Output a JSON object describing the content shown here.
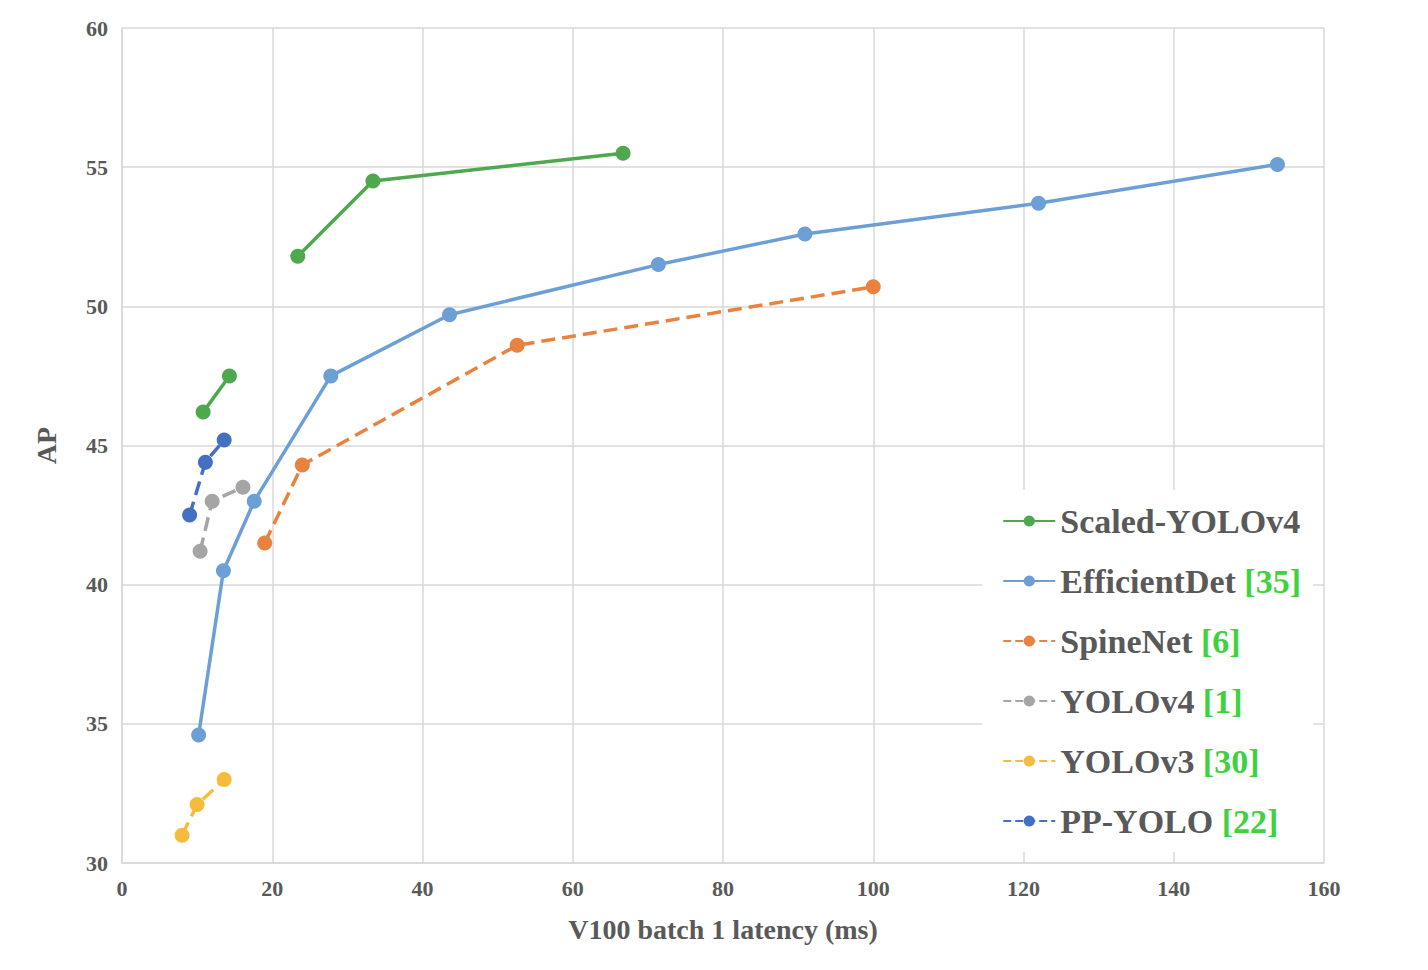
{
  "chart_data": {
    "type": "line",
    "x_label": "V100 batch 1 latency (ms)",
    "y_label": "AP",
    "xlim": [
      0,
      160
    ],
    "xticks": [
      0,
      20,
      40,
      60,
      80,
      100,
      120,
      140,
      160
    ],
    "ylim": [
      30,
      60
    ],
    "yticks": [
      30,
      35,
      40,
      45,
      50,
      55,
      60
    ],
    "grid": true,
    "legend": "lower right",
    "series": [
      {
        "name": "Scaled-YOLOv4",
        "color": "#4ea84e",
        "marker": "circle",
        "line_style": "solid",
        "x": [
          10.8,
          14.3,
          null,
          23.4,
          33.4,
          66.7
        ],
        "values": [
          46.2,
          47.5,
          null,
          51.8,
          54.5,
          55.5
        ]
      },
      {
        "name": "EfficientDet [35]",
        "color": "#6c9fd6",
        "marker": "circle",
        "line_style": "solid",
        "x": [
          10.2,
          13.5,
          17.6,
          27.8,
          43.6,
          71.4,
          90.9,
          122,
          153.8
        ],
        "values": [
          34.6,
          40.5,
          43.0,
          47.5,
          49.7,
          51.5,
          52.6,
          53.7,
          55.1
        ]
      },
      {
        "name": "SpineNet [6]",
        "color": "#e8823e",
        "marker": "circle",
        "line_style": "dashed",
        "x": [
          19,
          24,
          52.6,
          100
        ],
        "values": [
          41.5,
          44.3,
          48.6,
          50.7
        ]
      },
      {
        "name": "YOLOv4 [1]",
        "color": "#a5a5a5",
        "marker": "circle",
        "line_style": "dashed",
        "x": [
          10.4,
          12,
          16.1
        ],
        "values": [
          41.2,
          43.0,
          43.5
        ]
      },
      {
        "name": "YOLOv3 [30]",
        "color": "#f5bb3c",
        "marker": "circle",
        "line_style": "dashed",
        "x": [
          8,
          10,
          13.6
        ],
        "values": [
          31.0,
          32.1,
          33.0
        ]
      },
      {
        "name": "PP-YOLO [22]",
        "color": "#4470c2",
        "marker": "circle",
        "line_style": "dashed",
        "x": [
          9,
          11.1,
          13.6
        ],
        "values": [
          42.5,
          44.4,
          45.2
        ]
      }
    ]
  }
}
